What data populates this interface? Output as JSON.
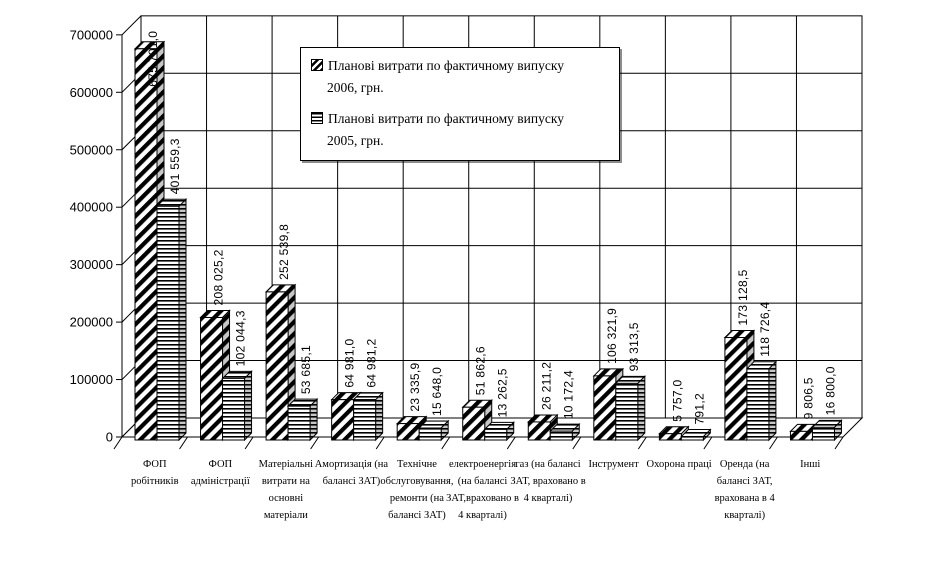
{
  "chart_data": {
    "type": "bar",
    "style": "3d-clustered",
    "title": "",
    "xlabel": "",
    "ylabel": "",
    "ylim": [
      0,
      700000
    ],
    "grid": true,
    "legend_position": "top-center",
    "y_ticks": [
      "0",
      "100000",
      "200000",
      "300000",
      "400000",
      "500000",
      "600000",
      "700000"
    ],
    "categories": [
      "ФОП робітників",
      "ФОП адміністрації",
      "Матеріальні витрати на основні матеріали",
      "Амортизація (на балансі ЗАТ)",
      "Технічне обслуговування, ремонти (на балансі ЗАТ)",
      "електроенергія (на балансі ЗАТ,враховано в 4 кварталі)",
      "газ (на балансі ЗАТ, враховано в 4 кварталі)",
      "Інструмент",
      "Охорона праці",
      "Оренда (на балансі ЗАТ, врахована в 4 кварталі)",
      "Інші"
    ],
    "category_label_lines": [
      [
        "ФОП",
        "робітників"
      ],
      [
        "ФОП",
        "адміністрації"
      ],
      [
        "Матеріальні",
        "витрати на",
        "основні",
        "матеріали"
      ],
      [
        "Амортизація (на",
        "балансі ЗАТ)"
      ],
      [
        "Технічне",
        "обслуговування,",
        "ремонти (на",
        "балансі ЗАТ)"
      ],
      [
        "електроенергія",
        "(на балансі",
        "ЗАТ,враховано в",
        "4 кварталі)"
      ],
      [
        "газ (на балансі",
        "ЗАТ, враховано в",
        "4 кварталі)"
      ],
      [
        "Інструмент"
      ],
      [
        "Охорона праці"
      ],
      [
        "Оренда (на",
        "балансі ЗАТ,",
        "врахована в 4",
        "кварталі)"
      ],
      [
        "Інші"
      ]
    ],
    "series": [
      {
        "name": "Планові витрати по фактичному випуску 2006, грн.",
        "pattern": "diagonal-hatch",
        "values": [
          675701.0,
          208025.2,
          252539.8,
          64981.0,
          23335.9,
          51862.6,
          26211.2,
          106321.9,
          5757.0,
          173128.5,
          9806.5
        ],
        "labels": [
          "675 701,0",
          "208 025,2",
          "252 539,8",
          "64 981,0",
          "23 335,9",
          "51 862,6",
          "26 211,2",
          "106 321,9",
          "5 757,0",
          "173 128,5",
          "9 806,5"
        ]
      },
      {
        "name": "Планові витрати по фактичному випуску 2005, грн.",
        "pattern": "horizontal-lines",
        "values": [
          401559.3,
          102044.3,
          53685.1,
          64981.2,
          15648.0,
          13262.5,
          10172.4,
          93313.5,
          791.2,
          118726.4,
          16800.0
        ],
        "labels": [
          "401 559,3",
          "102 044,3",
          "53 685,1",
          "64 981,2",
          "15 648,0",
          "13 262,5",
          "10 172,4",
          "93 313,5",
          "791,2",
          "118 726,4",
          "16 800,0"
        ]
      }
    ],
    "colors": {
      "stroke": "#000000",
      "fill_background": "#ffffff"
    }
  },
  "legend": {
    "items": [
      {
        "line1": "Планові витрати по фактичному випуску",
        "line2": "2006, грн."
      },
      {
        "line1": "Планові витрати по фактичному випуску",
        "line2": "2005, грн."
      }
    ]
  }
}
